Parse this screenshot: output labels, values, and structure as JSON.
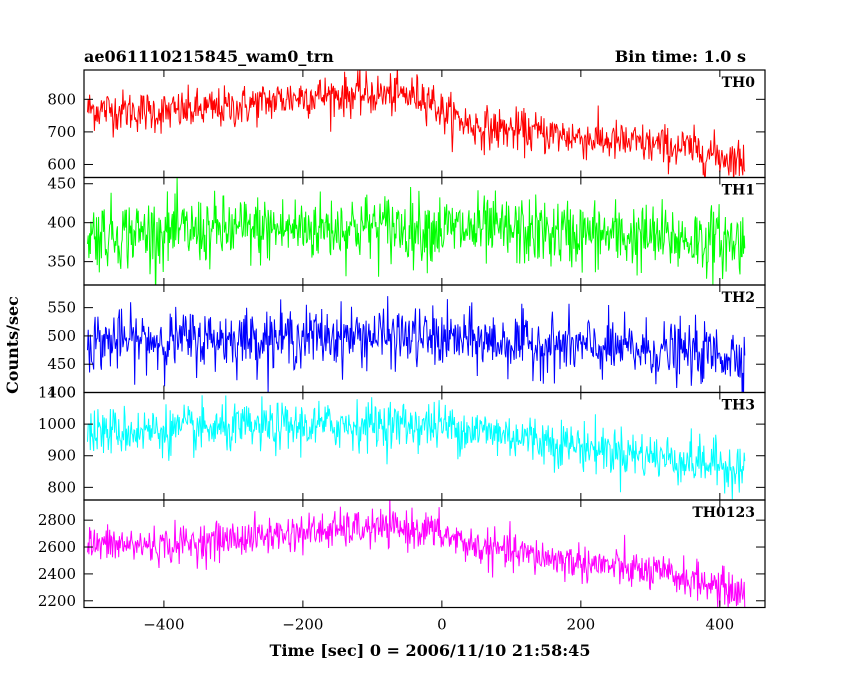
{
  "header": {
    "title": "ae061110215845_wam0_trn",
    "bin_time": "Bin time: 1.0 s"
  },
  "chart_data": {
    "type": "line",
    "xlabel": "Time [sec] 0 = 2006/11/10 21:58:45",
    "ylabel": "Counts/sec",
    "xlim": [
      -515,
      465
    ],
    "x_ticks": [
      -400,
      -200,
      0,
      200,
      400
    ],
    "x_tick_labels": [
      "−400",
      "−200",
      "0",
      "200",
      "400"
    ],
    "x_range": [
      -510,
      436
    ],
    "grid": false,
    "series": [
      {
        "name": "TH0",
        "color": "#ff0000",
        "ylim": [
          560,
          890
        ],
        "y_ticks": [
          600,
          700,
          800
        ],
        "noise": 32,
        "trend": [
          [
            -510,
            770
          ],
          [
            -400,
            760
          ],
          [
            -300,
            775
          ],
          [
            -200,
            810
          ],
          [
            -100,
            815
          ],
          [
            -20,
            810
          ],
          [
            0,
            760
          ],
          [
            50,
            715
          ],
          [
            150,
            695
          ],
          [
            250,
            670
          ],
          [
            350,
            650
          ],
          [
            436,
            610
          ]
        ]
      },
      {
        "name": "TH1",
        "color": "#00ff00",
        "ylim": [
          320,
          458
        ],
        "y_ticks": [
          350,
          400,
          450
        ],
        "noise": 22,
        "trend": [
          [
            -510,
            385
          ],
          [
            -300,
            390
          ],
          [
            -100,
            395
          ],
          [
            0,
            392
          ],
          [
            200,
            385
          ],
          [
            436,
            375
          ]
        ]
      },
      {
        "name": "TH2",
        "color": "#0000ff",
        "ylim": [
          400,
          590
        ],
        "y_ticks": [
          400,
          450,
          500,
          550
        ],
        "noise": 26,
        "trend": [
          [
            -510,
            490
          ],
          [
            -300,
            495
          ],
          [
            -100,
            500
          ],
          [
            0,
            495
          ],
          [
            200,
            480
          ],
          [
            436,
            465
          ]
        ]
      },
      {
        "name": "TH3",
        "color": "#00ffff",
        "ylim": [
          760,
          1100
        ],
        "y_ticks": [
          800,
          900,
          1000,
          1100
        ],
        "noise": 38,
        "trend": [
          [
            -510,
            975
          ],
          [
            -300,
            985
          ],
          [
            -100,
            1000
          ],
          [
            0,
            995
          ],
          [
            100,
            965
          ],
          [
            200,
            930
          ],
          [
            300,
            900
          ],
          [
            436,
            860
          ]
        ]
      },
      {
        "name": "TH0123",
        "color": "#ff00ff",
        "ylim": [
          2150,
          2950
        ],
        "y_ticks": [
          2200,
          2400,
          2600,
          2800
        ],
        "noise": 70,
        "trend": [
          [
            -510,
            2620
          ],
          [
            -400,
            2610
          ],
          [
            -300,
            2660
          ],
          [
            -200,
            2710
          ],
          [
            -100,
            2740
          ],
          [
            -20,
            2730
          ],
          [
            50,
            2600
          ],
          [
            150,
            2520
          ],
          [
            250,
            2450
          ],
          [
            350,
            2370
          ],
          [
            436,
            2250
          ]
        ]
      }
    ]
  }
}
